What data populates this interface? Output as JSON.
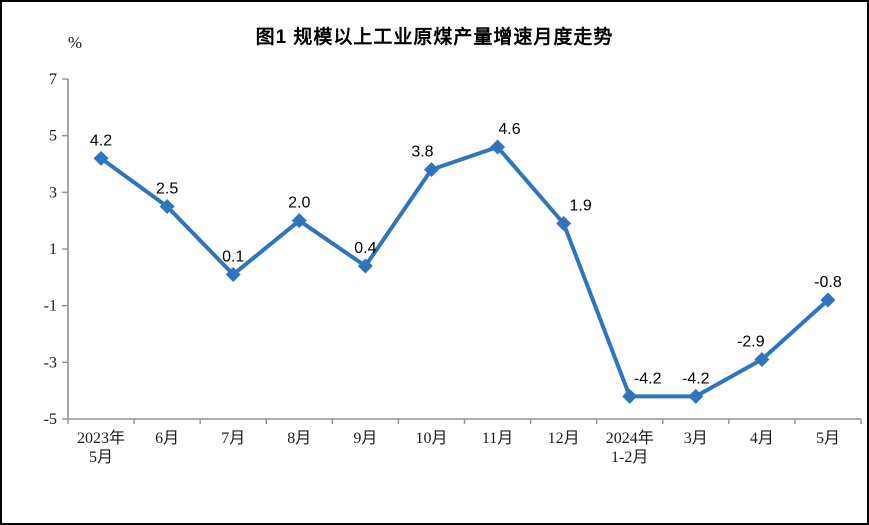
{
  "figure": {
    "title": "图1  规模以上工业原煤产量增速月度走势",
    "y_unit_label": "%"
  },
  "chart_data": {
    "type": "line",
    "title": "图1  规模以上工业原煤产量增速月度走势",
    "categories": [
      "2023年\n5月",
      "6月",
      "7月",
      "8月",
      "9月",
      "10月",
      "11月",
      "12月",
      "2024年\n1-2月",
      "3月",
      "4月",
      "5月"
    ],
    "values": [
      4.2,
      2.5,
      0.1,
      2.0,
      0.4,
      3.8,
      4.6,
      1.9,
      -4.2,
      -4.2,
      -2.9,
      -0.8
    ],
    "point_labels": [
      "4.2",
      "2.5",
      "0.1",
      "2.0",
      "0.4",
      "3.8",
      "4.6",
      "1.9",
      "-4.2",
      "-4.2",
      "-2.9",
      "-0.8"
    ],
    "label_dx": [
      0,
      0,
      0,
      0,
      0,
      -9,
      12,
      17,
      18,
      0,
      -11,
      0
    ],
    "xlabel": "",
    "ylabel": "%",
    "ylim": [
      -5,
      7
    ],
    "yticks": [
      7,
      5,
      3,
      1,
      -1,
      -3,
      -5
    ],
    "grid": false,
    "legend": "none",
    "marker": "diamond",
    "colors": {
      "line": "#2E75BE",
      "marker": "#2E75BE",
      "axis": "#909090",
      "tick_label": "#1a1a1a",
      "data_label": "#000000"
    }
  }
}
